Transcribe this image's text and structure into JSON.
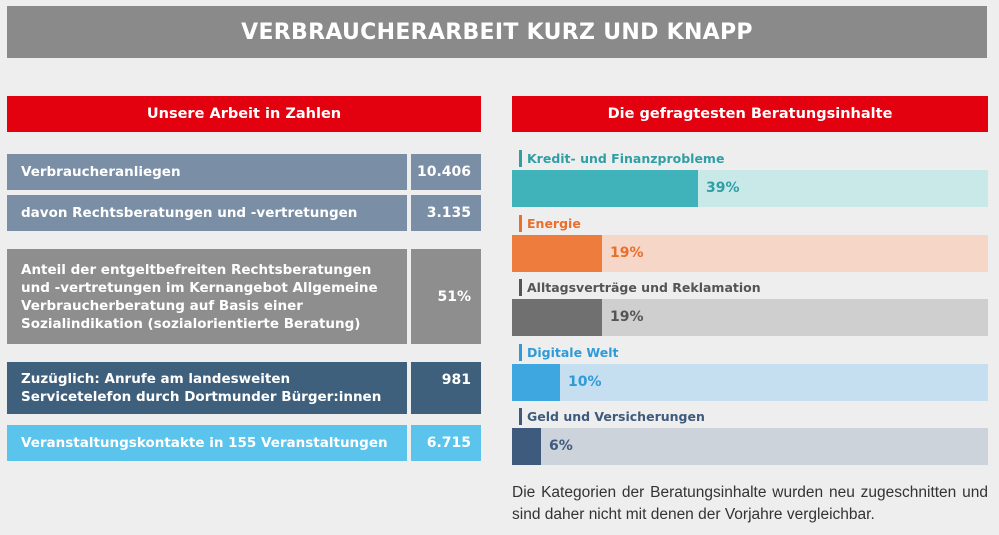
{
  "banner": {
    "title": "VERBRAUCHERARBEIT KURZ UND KNAPP"
  },
  "left": {
    "header": "Unsere Arbeit in Zahlen",
    "rows": [
      {
        "label": "Verbraucheranliegen",
        "value": "10.406"
      },
      {
        "label": "davon Rechtsberatungen und -vertretungen",
        "value": "3.135"
      },
      {
        "label": "Anteil der entgeltbefreiten Rechtsberatungen und -vertretungen im Kernangebot Allgemeine Verbraucherberatung auf Basis einer Sozialindikation (sozialorientierte Beratung)",
        "value": "51%"
      },
      {
        "label": "Zuzüglich: Anrufe am landesweiten Servicetelefon durch Dortmunder Bürger:innen",
        "value": "981"
      },
      {
        "label": "Veranstaltungskontakte in 155 Veranstaltungen",
        "value": "6.715"
      }
    ]
  },
  "right": {
    "header": "Die gefragtesten Beratungsinhalte",
    "footnote": "Die Kategorien der Beratungsinhalte wurden neu zugeschnitten und sind daher nicht mit denen der Vorjahre vergleichbar."
  },
  "chart_data": {
    "type": "bar",
    "orientation": "horizontal",
    "title": "Die gefragtesten Beratungsinhalte",
    "categories": [
      "Kredit- und Finanzprobleme",
      "Energie",
      "Alltagsverträge und Reklamation",
      "Digitale Welt",
      "Geld und Versicherungen"
    ],
    "values": [
      39,
      19,
      19,
      10,
      6
    ],
    "value_labels": [
      "39%",
      "19%",
      "19%",
      "10%",
      "6%"
    ],
    "unit": "%",
    "xlim": [
      0,
      100
    ],
    "colors": [
      {
        "fill": "#3fb3b9",
        "background": "#c9e9e9",
        "text": "#2f9fa5"
      },
      {
        "fill": "#ee7c3d",
        "background": "#f5d6c7",
        "text": "#ea6f2c"
      },
      {
        "fill": "#707070",
        "background": "#cfcfcf",
        "text": "#555555"
      },
      {
        "fill": "#3ea7e0",
        "background": "#c5dff0",
        "text": "#2f9ad8"
      },
      {
        "fill": "#3e5a7d",
        "background": "#cdd3db",
        "text": "#3e5a7d"
      }
    ]
  }
}
